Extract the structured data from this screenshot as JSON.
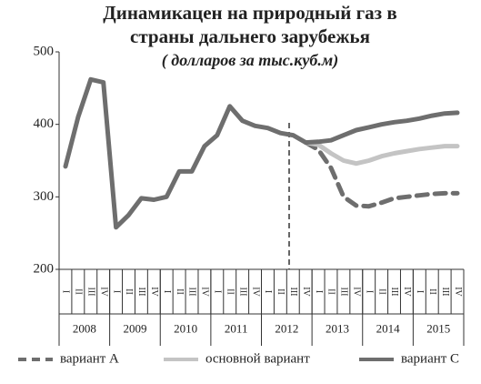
{
  "chart_data": {
    "type": "line",
    "title": [
      "Динамикацен на природный газ в",
      "страны дальнего зарубежья"
    ],
    "subtitle": "( долларов за тыс.куб.м)",
    "categories": [
      "I",
      "II",
      "III",
      "IV",
      "I",
      "II",
      "III",
      "IV",
      "I",
      "II",
      "III",
      "IV",
      "I",
      "II",
      "III",
      "IV",
      "I",
      "II",
      "III",
      "IV",
      "I",
      "II",
      "III",
      "IV",
      "I",
      "II",
      "III",
      "IV",
      "I",
      "II",
      "III",
      "IV"
    ],
    "years": [
      "2008",
      "2009",
      "2010",
      "2011",
      "2012",
      "2013",
      "2014",
      "2015"
    ],
    "ylim": [
      200,
      500
    ],
    "yticks": [
      200,
      300,
      400,
      500
    ],
    "grid": false,
    "series": [
      {
        "name": "вариант А",
        "color": "#6e6e6e",
        "dash": true,
        "values": [
          null,
          null,
          null,
          null,
          null,
          null,
          null,
          null,
          null,
          null,
          null,
          null,
          null,
          null,
          null,
          null,
          null,
          null,
          null,
          375,
          365,
          340,
          300,
          288,
          287,
          292,
          298,
          300,
          302,
          304,
          305,
          305
        ]
      },
      {
        "name": "основной вариант",
        "color": "#c4c4c4",
        "dash": false,
        "values": [
          null,
          null,
          null,
          null,
          null,
          null,
          null,
          null,
          null,
          null,
          null,
          null,
          null,
          null,
          null,
          null,
          null,
          null,
          null,
          375,
          372,
          360,
          350,
          346,
          350,
          356,
          360,
          363,
          366,
          368,
          370,
          370
        ]
      },
      {
        "name": "вариант С",
        "color": "#6e6e6e",
        "dash": false,
        "values": [
          342,
          410,
          462,
          458,
          258,
          275,
          298,
          296,
          300,
          335,
          335,
          370,
          385,
          425,
          405,
          398,
          395,
          388,
          385,
          375,
          376,
          378,
          385,
          392,
          396,
          400,
          403,
          405,
          408,
          412,
          415,
          416
        ]
      }
    ]
  }
}
